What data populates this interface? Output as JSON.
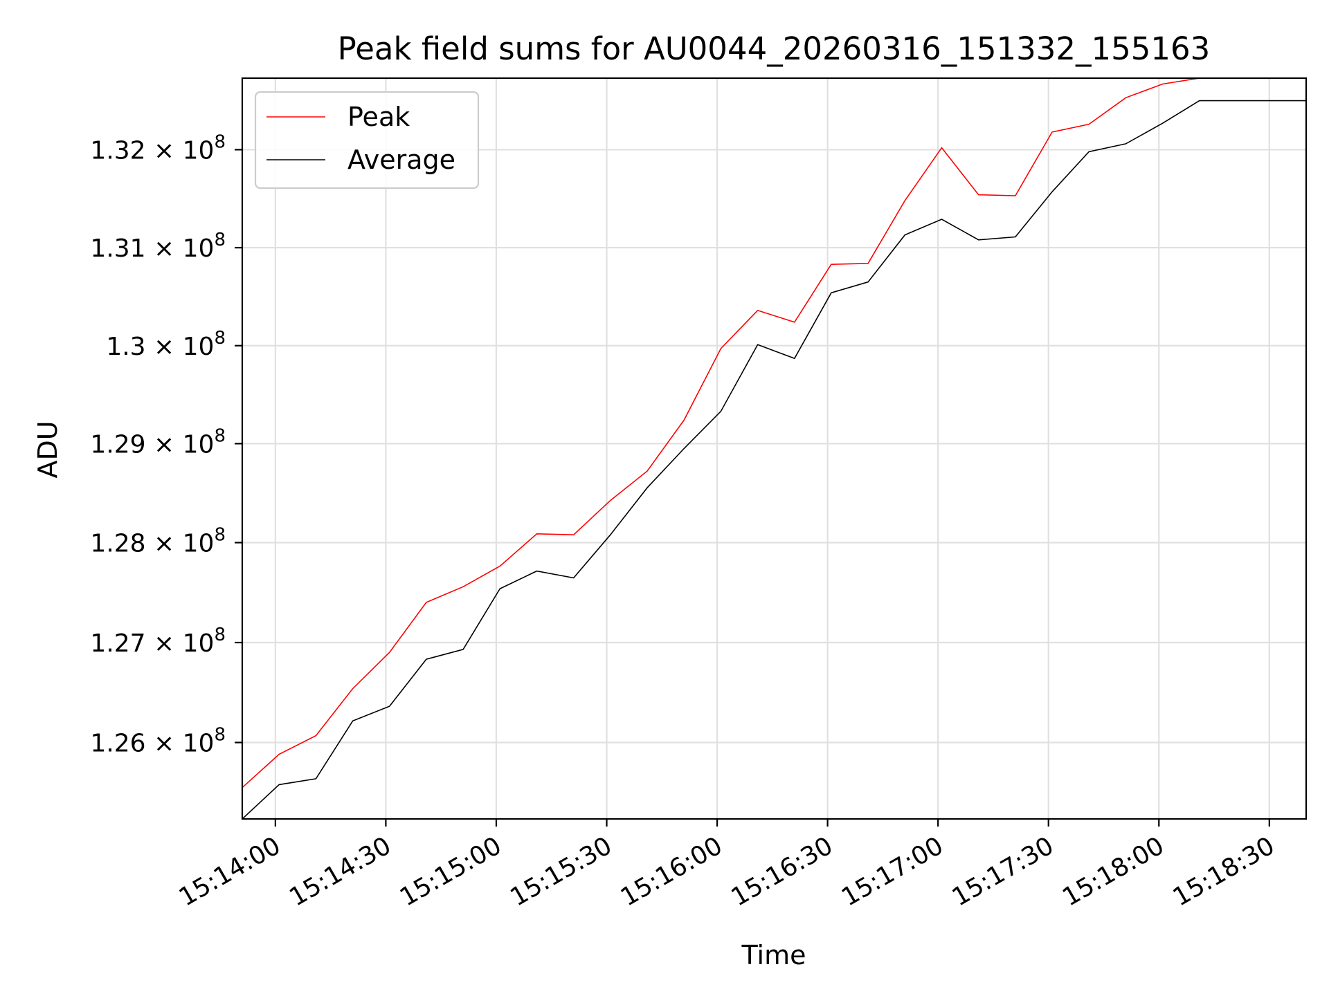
{
  "chart_data": {
    "type": "line",
    "title": "Peak field sums for AU0044_20260316_151332_155163",
    "xlabel": "Time",
    "ylabel": "ADU",
    "grid": true,
    "legend": "upper left",
    "xlim": [
      "15:13:51",
      "15:18:40"
    ],
    "ylim": [
      125170000,
      132730000
    ],
    "x_ticks": [
      "15:14:00",
      "15:14:30",
      "15:15:00",
      "15:15:30",
      "15:16:00",
      "15:16:30",
      "15:17:00",
      "15:17:30",
      "15:18:00",
      "15:18:30"
    ],
    "y_ticks": [
      {
        "value": 125950000,
        "mantissa": "1.26"
      },
      {
        "value": 126970000,
        "mantissa": "1.27"
      },
      {
        "value": 127990000,
        "mantissa": "1.28"
      },
      {
        "value": 129000000,
        "mantissa": "1.29"
      },
      {
        "value": 130000000,
        "mantissa": "1.3"
      },
      {
        "value": 131000000,
        "mantissa": "1.31"
      },
      {
        "value": 132000000,
        "mantissa": "1.32"
      }
    ],
    "y_tick_suffix": "× 10",
    "y_tick_exponent": "8",
    "x": [
      "15:13:51",
      "15:14:01",
      "15:14:11",
      "15:14:21",
      "15:14:31",
      "15:14:41",
      "15:14:51",
      "15:15:01",
      "15:15:11",
      "15:15:21",
      "15:15:31",
      "15:15:41",
      "15:15:51",
      "15:16:01",
      "15:16:11",
      "15:16:21",
      "15:16:31",
      "15:16:41",
      "15:16:51",
      "15:17:01",
      "15:17:11",
      "15:17:21",
      "15:17:31",
      "15:17:41",
      "15:17:51",
      "15:18:01",
      "15:18:11",
      "15:18:21",
      "15:18:31",
      "15:18:40"
    ],
    "series": [
      {
        "name": "Peak",
        "color": "#ff0000",
        "values": [
          125490000,
          125830000,
          126020000,
          126500000,
          126870000,
          127380000,
          127540000,
          127750000,
          128080000,
          128070000,
          128420000,
          128720000,
          129240000,
          129970000,
          130360000,
          130240000,
          130830000,
          130840000,
          131480000,
          132020000,
          131540000,
          131530000,
          132180000,
          132260000,
          132530000,
          132670000,
          132730000,
          132730000,
          132730000,
          132730000
        ]
      },
      {
        "name": "Average",
        "color": "#000000",
        "values": [
          125170000,
          125520000,
          125580000,
          126170000,
          126320000,
          126800000,
          126900000,
          127520000,
          127700000,
          127630000,
          128070000,
          128550000,
          128950000,
          129330000,
          130010000,
          129870000,
          130540000,
          130650000,
          131130000,
          131290000,
          131080000,
          131110000,
          131570000,
          131980000,
          132060000,
          132270000,
          132500000,
          132500000,
          132500000,
          132500000
        ]
      }
    ]
  }
}
